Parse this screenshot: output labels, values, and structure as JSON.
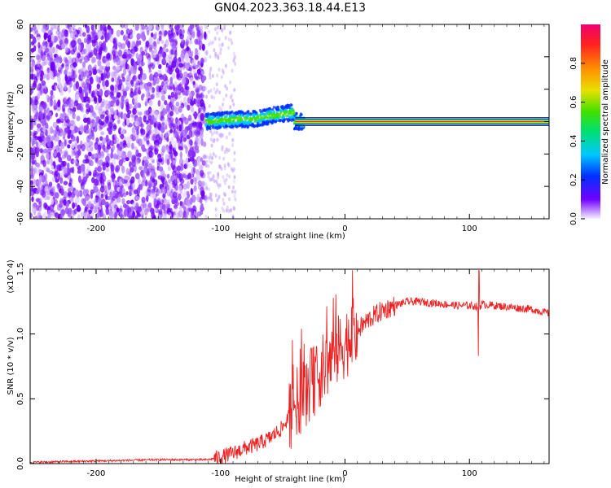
{
  "title": "GN04.2023.363.18.44.E13",
  "chart_data": [
    {
      "type": "heatmap",
      "title": "GN04.2023.363.18.44.E13",
      "xlabel": "Height of straight line (km)",
      "ylabel": "Frequency (Hz)",
      "xlim": [
        -253,
        164
      ],
      "ylim": [
        -60,
        60
      ],
      "x_ticks": [
        -200,
        -100,
        0,
        100
      ],
      "y_ticks": [
        -60,
        -40,
        -20,
        0,
        20,
        40,
        60
      ],
      "colorbar": {
        "label": "Normalized spectral amplitude",
        "range": [
          0.0,
          1.0
        ],
        "ticks": [
          "0.0",
          "0.2",
          "0.4",
          "0.6",
          "0.8"
        ],
        "colormap": [
          "#f5f0ff",
          "#7000ff",
          "#0030ff",
          "#00c8ff",
          "#00e070",
          "#40e000",
          "#e8e000",
          "#ff9000",
          "#ff2020",
          "#f00070"
        ]
      },
      "features": {
        "noise_region_x": [
          -253,
          -112
        ],
        "sparse_noise_x": [
          -112,
          -88
        ],
        "signal_start_x": -112,
        "carrier_band_x": [
          -40,
          164
        ],
        "carrier_freq_hz": 0
      }
    },
    {
      "type": "line",
      "xlabel": "Height of straight line (km)",
      "ylabel": "SNR (10 * v/v)",
      "ylabel_exponent": "(x10^4)",
      "xlim": [
        -253,
        164
      ],
      "ylim": [
        0.0,
        1.5
      ],
      "x_ticks": [
        -200,
        -100,
        0,
        100
      ],
      "y_ticks": [
        "0.0",
        "0.5",
        "1.0",
        "1.5"
      ],
      "color": "#ee2222",
      "x": [
        -253,
        -200,
        -150,
        -110,
        -100,
        -90,
        -80,
        -70,
        -60,
        -50,
        -40,
        -30,
        -20,
        -10,
        0,
        10,
        20,
        30,
        40,
        50,
        60,
        70,
        80,
        90,
        100,
        108,
        110,
        120,
        130,
        140,
        150,
        164
      ],
      "y": [
        0.01,
        0.02,
        0.03,
        0.03,
        0.05,
        0.08,
        0.12,
        0.15,
        0.2,
        0.28,
        0.45,
        0.58,
        0.7,
        0.82,
        0.93,
        1.03,
        1.12,
        1.18,
        1.22,
        1.25,
        1.25,
        1.24,
        1.23,
        1.22,
        1.22,
        1.21,
        1.23,
        1.22,
        1.21,
        1.2,
        1.19,
        1.16
      ]
    }
  ]
}
